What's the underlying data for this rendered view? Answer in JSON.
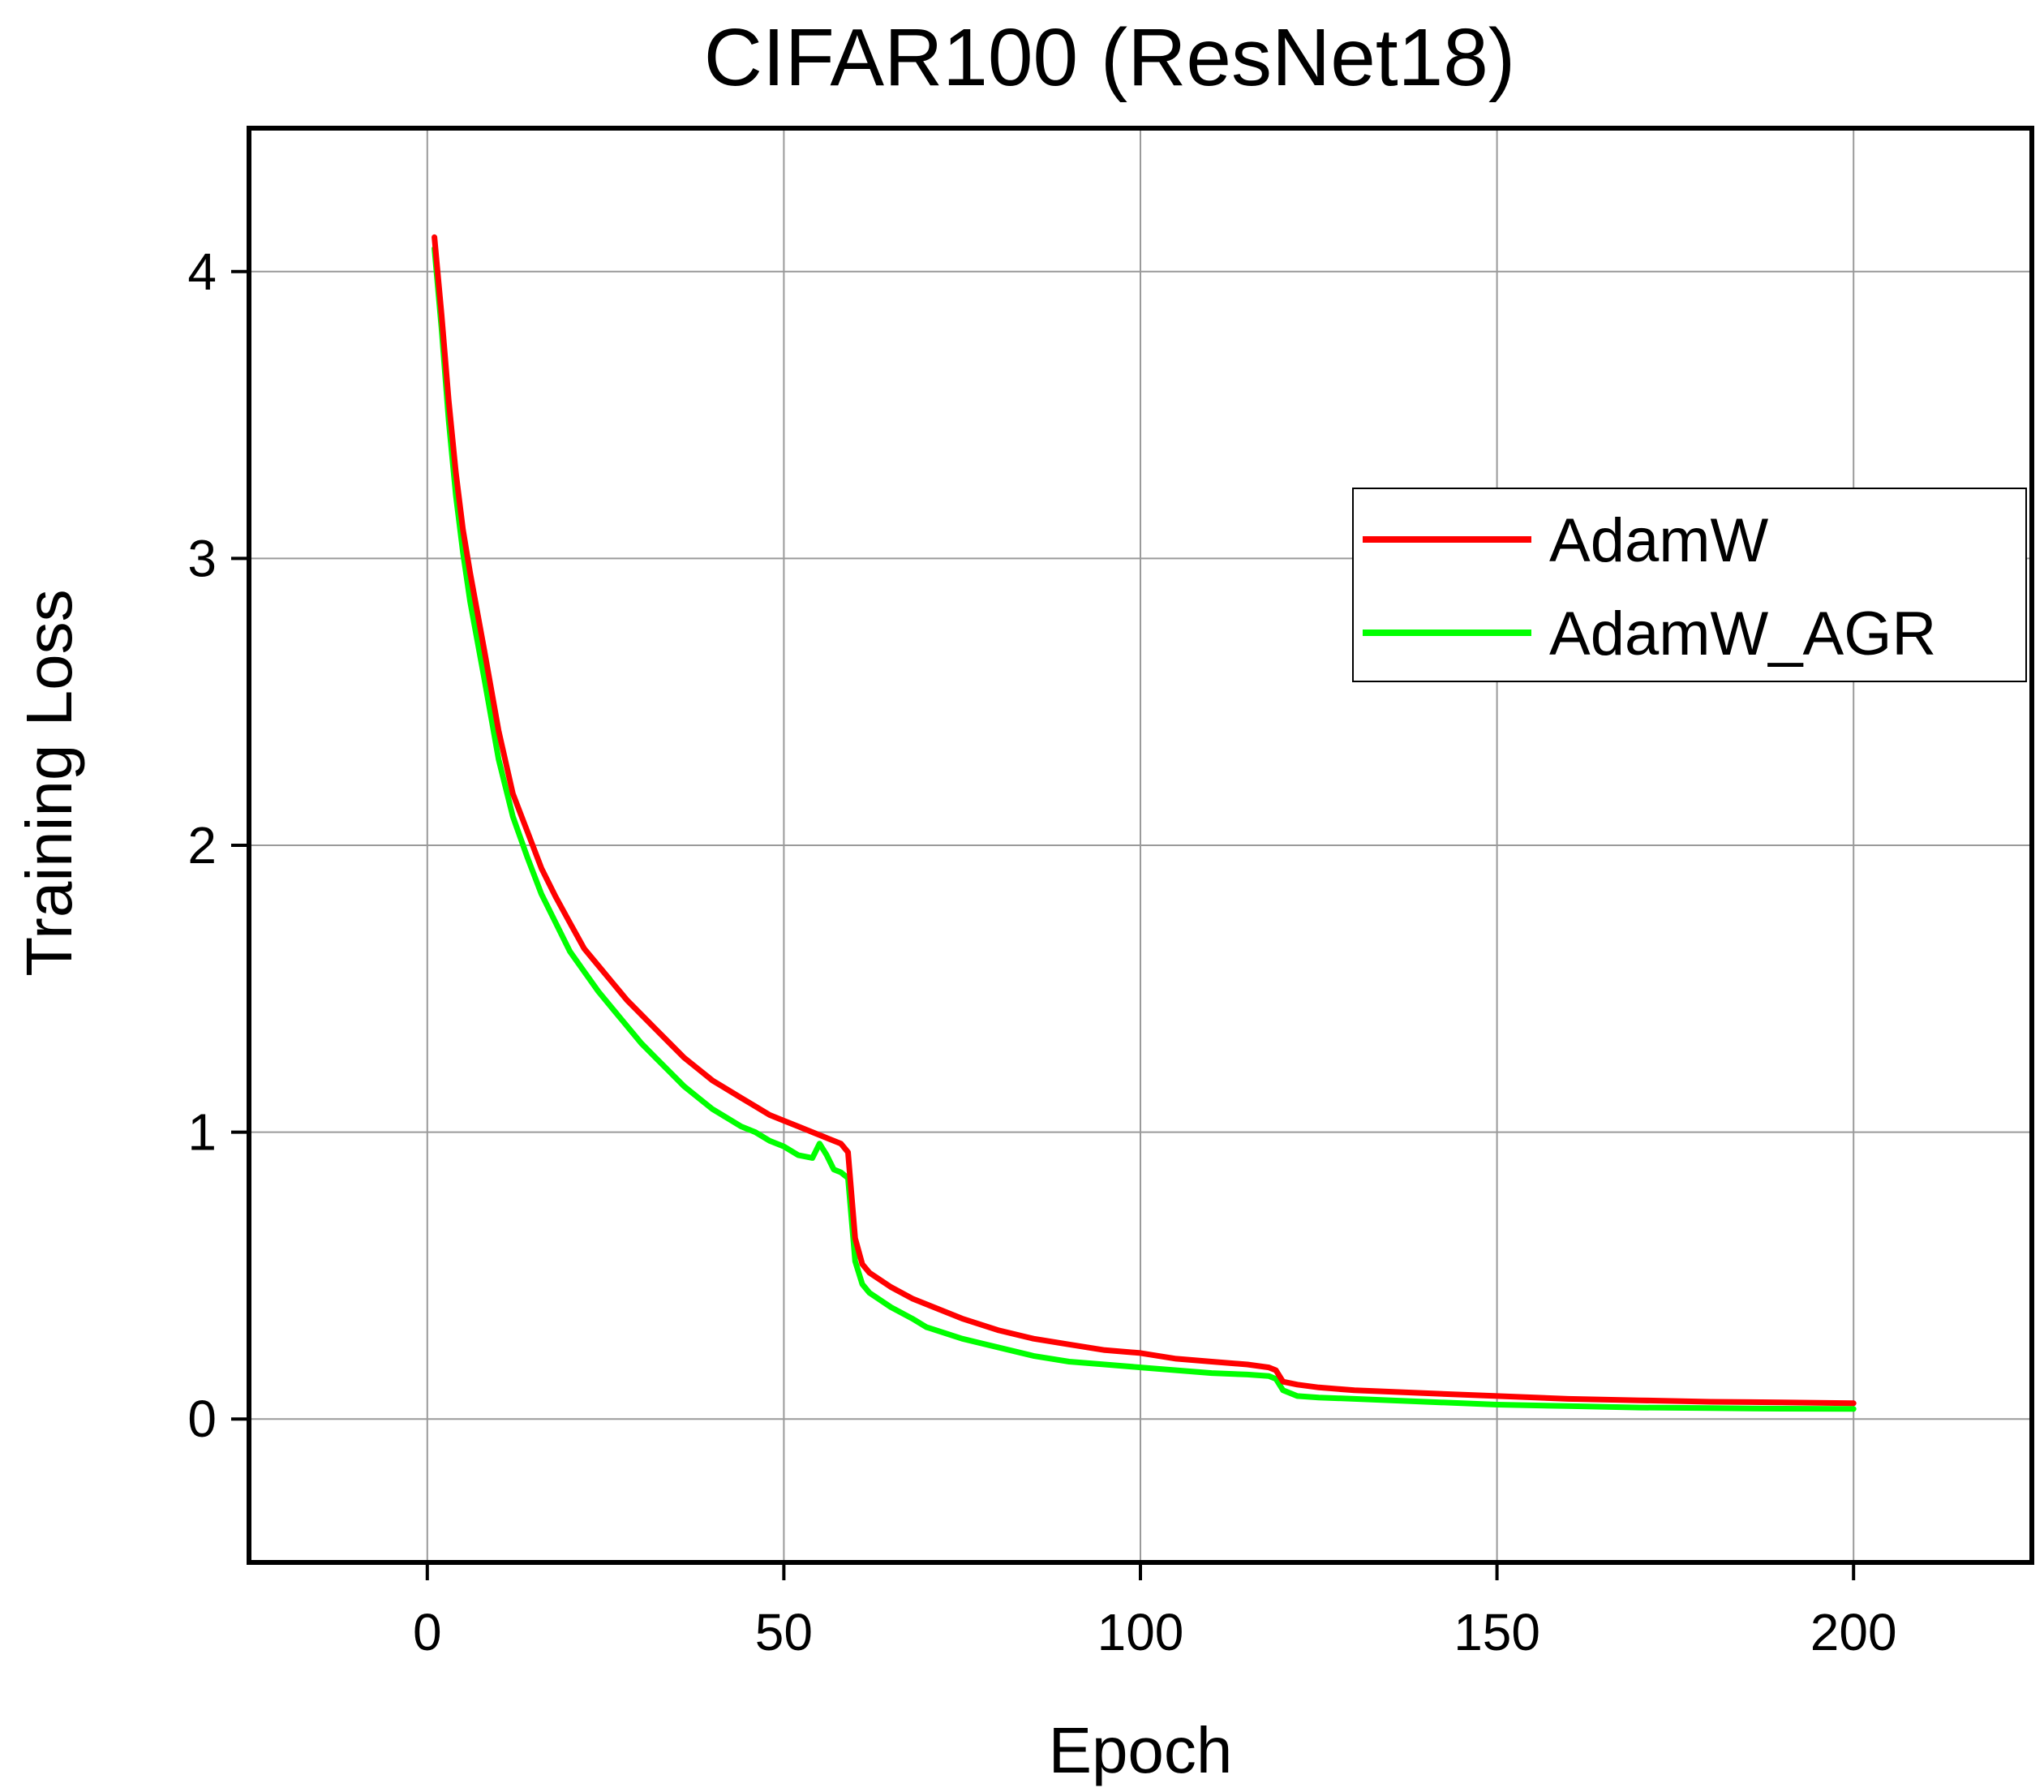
{
  "chart_data": {
    "type": "line",
    "title": "CIFAR100 (ResNet18)",
    "xlabel": "Epoch",
    "ylabel": "Training Loss",
    "xlim": [
      -25,
      225
    ],
    "ylim": [
      -0.5,
      4.5
    ],
    "xticks": [
      0,
      50,
      100,
      150,
      200
    ],
    "yticks": [
      0,
      1,
      2,
      3,
      4
    ],
    "grid": true,
    "legend_position": "upper-right",
    "series": [
      {
        "name": "AdamW",
        "color": "#ff0000",
        "x": [
          1,
          2,
          3,
          4,
          5,
          6,
          8,
          10,
          12,
          14,
          16,
          18,
          20,
          22,
          24,
          26,
          28,
          30,
          32,
          34,
          36,
          38,
          40,
          42,
          44,
          46,
          48,
          50,
          52,
          54,
          56,
          58,
          59,
          60,
          61,
          62,
          65,
          68,
          70,
          75,
          80,
          85,
          90,
          95,
          100,
          105,
          110,
          115,
          118,
          119,
          120,
          122,
          125,
          130,
          140,
          150,
          160,
          170,
          180,
          190,
          200
        ],
        "y": [
          4.12,
          3.85,
          3.55,
          3.3,
          3.1,
          2.95,
          2.68,
          2.4,
          2.18,
          2.05,
          1.92,
          1.82,
          1.73,
          1.64,
          1.58,
          1.52,
          1.46,
          1.41,
          1.36,
          1.31,
          1.26,
          1.22,
          1.18,
          1.15,
          1.12,
          1.09,
          1.06,
          1.04,
          1.02,
          1.0,
          0.98,
          0.96,
          0.93,
          0.63,
          0.54,
          0.51,
          0.46,
          0.42,
          0.4,
          0.35,
          0.31,
          0.28,
          0.26,
          0.24,
          0.23,
          0.21,
          0.2,
          0.19,
          0.18,
          0.17,
          0.13,
          0.12,
          0.11,
          0.1,
          0.09,
          0.08,
          0.07,
          0.065,
          0.06,
          0.058,
          0.055
        ]
      },
      {
        "name": "AdamW_AGR",
        "color": "#00ff00",
        "x": [
          1,
          2,
          3,
          4,
          5,
          6,
          8,
          10,
          12,
          14,
          16,
          18,
          20,
          22,
          24,
          26,
          28,
          30,
          32,
          34,
          36,
          38,
          40,
          42,
          44,
          46,
          48,
          50,
          52,
          54,
          55,
          56,
          57,
          58,
          59,
          60,
          61,
          62,
          65,
          68,
          70,
          75,
          80,
          85,
          90,
          95,
          100,
          105,
          110,
          115,
          118,
          119,
          120,
          122,
          125,
          130,
          140,
          150,
          160,
          170,
          180,
          190,
          200
        ],
        "y": [
          4.08,
          3.8,
          3.48,
          3.22,
          3.02,
          2.85,
          2.58,
          2.3,
          2.1,
          1.96,
          1.83,
          1.73,
          1.63,
          1.56,
          1.49,
          1.43,
          1.37,
          1.31,
          1.26,
          1.21,
          1.16,
          1.12,
          1.08,
          1.05,
          1.02,
          1.0,
          0.97,
          0.95,
          0.92,
          0.91,
          0.96,
          0.92,
          0.87,
          0.86,
          0.84,
          0.55,
          0.47,
          0.44,
          0.39,
          0.35,
          0.32,
          0.28,
          0.25,
          0.22,
          0.2,
          0.19,
          0.18,
          0.17,
          0.16,
          0.155,
          0.15,
          0.14,
          0.1,
          0.08,
          0.075,
          0.07,
          0.06,
          0.05,
          0.045,
          0.04,
          0.038,
          0.036,
          0.035
        ]
      }
    ]
  }
}
